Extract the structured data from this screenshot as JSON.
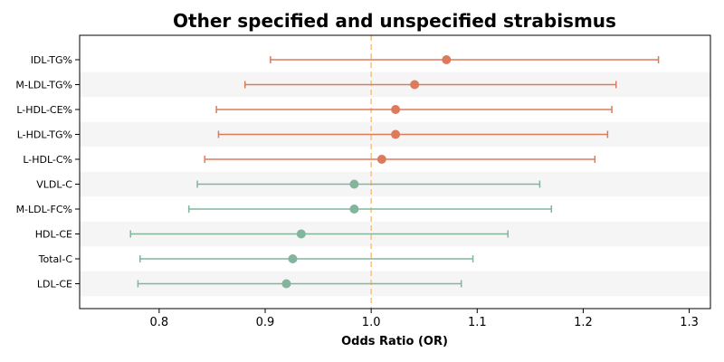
{
  "chart_data": {
    "type": "forest",
    "title": "Other specified and unspecified strabismus",
    "xlabel": "Odds Ratio (OR)",
    "ylabel": "",
    "xlim": [
      0.725,
      1.32
    ],
    "xticks": [
      0.8,
      0.9,
      1.0,
      1.1,
      1.2,
      1.3
    ],
    "xtick_labels": [
      "0.8",
      "0.9",
      "1.0",
      "1.1",
      "1.2",
      "1.3"
    ],
    "reference_line": 1.0,
    "grid": false,
    "row_shading": "alternating",
    "colors": {
      "positive": "#dd7a5c",
      "negative": "#82b59c",
      "reference": "#f5c27d",
      "band": "#f5f5f5"
    },
    "rows": [
      {
        "label": "IDL-TG%",
        "or": 1.071,
        "lower": 0.905,
        "upper": 1.271
      },
      {
        "label": "M-LDL-TG%",
        "or": 1.041,
        "lower": 0.881,
        "upper": 1.231
      },
      {
        "label": "L-HDL-CE%",
        "or": 1.023,
        "lower": 0.854,
        "upper": 1.227
      },
      {
        "label": "L-HDL-TG%",
        "or": 1.023,
        "lower": 0.856,
        "upper": 1.223
      },
      {
        "label": "L-HDL-C%",
        "or": 1.01,
        "lower": 0.843,
        "upper": 1.211
      },
      {
        "label": "VLDL-C",
        "or": 0.984,
        "lower": 0.836,
        "upper": 1.159
      },
      {
        "label": "M-LDL-FC%",
        "or": 0.984,
        "lower": 0.828,
        "upper": 1.17
      },
      {
        "label": "HDL-CE",
        "or": 0.934,
        "lower": 0.773,
        "upper": 1.129
      },
      {
        "label": "Total-C",
        "or": 0.926,
        "lower": 0.782,
        "upper": 1.096
      },
      {
        "label": "LDL-CE",
        "or": 0.92,
        "lower": 0.78,
        "upper": 1.085
      }
    ]
  }
}
